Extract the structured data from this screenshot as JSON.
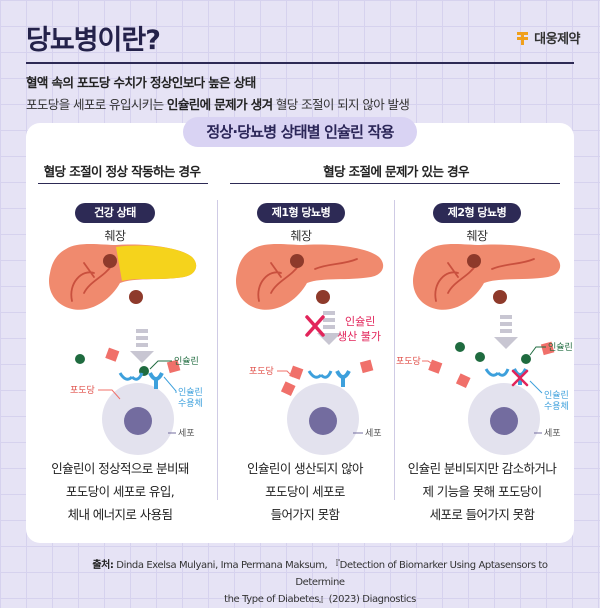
{
  "header": {
    "title": "당뇨병이란?",
    "brand": "대웅제약",
    "line1": "혈액 속의 포도당 수치가 정상인보다 높은 상태",
    "line2_pre": "포도당을 세포로 유입시키는 ",
    "line2_bold": "인슐린에 문제가 생겨",
    "line2_post": " 혈당 조절이 되지 않아 발생"
  },
  "card": {
    "title": "정상·당뇨병 상태별 인슐린 작용",
    "normal_heading": "혈당 조절이 정상 작동하는 경우",
    "problem_heading": "혈당 조절에 문제가 있는 경우",
    "columns": [
      {
        "badge": "건강 상태",
        "organ": "췌장",
        "labels": {
          "insulin": "인슐린",
          "glucose": "포도당",
          "receptor_1": "인슐린",
          "receptor_2": "수용체",
          "cell": "세포"
        },
        "desc": [
          "인슐린이 정상적으로 분비돼",
          "포도당이 세포로 유입,",
          "체내 에너지로 사용됨"
        ]
      },
      {
        "badge": "제1형 당뇨병",
        "organ": "췌장",
        "labels": {
          "no_insulin_1": "인슐린",
          "no_insulin_2": "생산 불가",
          "glucose": "포도당",
          "cell": "세포"
        },
        "desc": [
          "인슐린이 생산되지 않아",
          "포도당이 세포로",
          "들어가지 못함"
        ]
      },
      {
        "badge": "제2형 당뇨병",
        "organ": "췌장",
        "labels": {
          "insulin": "인슐린",
          "glucose": "포도당",
          "receptor_1": "인슐린",
          "receptor_2": "수용체",
          "cell": "세포"
        },
        "desc": [
          "인슐린 분비되지만 감소하거나",
          "제 기능을 못해 포도당이",
          "세포로 들어가지 못함"
        ]
      }
    ]
  },
  "source": {
    "label": "출처:",
    "line1": " Dinda Exelsa Mulyani, Ima Permana Maksum, 『Detection of Biomarker Using Aptasensors to Determine",
    "line2": "the Type of Diabetes』(2023) Diagnostics"
  },
  "colors": {
    "background": "#e6e3f5",
    "navy": "#2d2a55",
    "pancreas": "#f08a6e",
    "insulin_highlight": "#f5d31c",
    "glucose": "#f0706a",
    "insulin_dot": "#1f6b3f",
    "receptor": "#3da0dc",
    "cell_outer": "#e3e2ee",
    "cell_nucleus": "#736c9f",
    "warning": "#e2245a"
  },
  "icons": [
    "pancreas-icon",
    "arrow-down-icon",
    "cell-icon",
    "no-production-x-icon",
    "blocked-receptor-x-icon",
    "brand-logo-icon"
  ]
}
